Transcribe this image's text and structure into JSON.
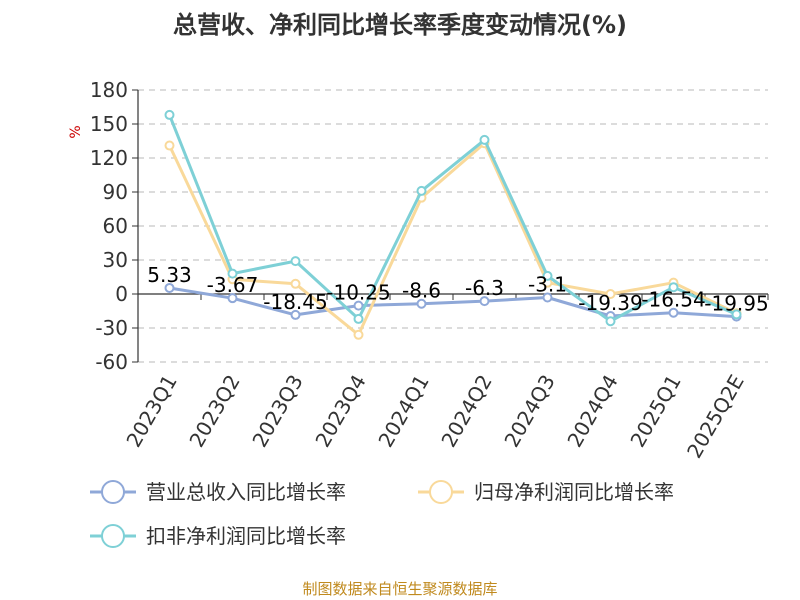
{
  "chart_data": {
    "type": "line",
    "title": "总营收、净利同比增长率季度变动情况(%)",
    "ylabel": "%",
    "ylim": [
      -60,
      180
    ],
    "yticks": [
      180,
      150,
      120,
      90,
      60,
      30,
      0,
      -30,
      -60
    ],
    "grid": true,
    "legend_position": "bottom",
    "categories": [
      "2023Q1",
      "2023Q2",
      "2023Q3",
      "2023Q4",
      "2024Q1",
      "2024Q2",
      "2024Q3",
      "2024Q4",
      "2025Q1",
      "2025Q2E"
    ],
    "series": [
      {
        "name": "营业总收入同比增长率",
        "color": "#8fa8d8",
        "values": [
          5.33,
          -3.67,
          -18.45,
          -10.25,
          -8.6,
          -6.3,
          -3.1,
          -19.39,
          -16.54,
          -19.95
        ],
        "data_labels": [
          "5.33",
          "-3.67",
          "-18.45",
          "-10.25",
          "-8.6",
          "-6.3",
          "-3.1",
          "-19.39",
          "-16.54",
          "-19.95"
        ]
      },
      {
        "name": "归母净利润同比增长率",
        "color": "#f9d99a",
        "values": [
          131,
          13,
          9,
          -36,
          85,
          133,
          10,
          0,
          10,
          -17
        ]
      },
      {
        "name": "扣非净利润同比增长率",
        "color": "#7ed0d6",
        "values": [
          158,
          18,
          29,
          -22,
          91,
          136,
          16,
          -24,
          6,
          -18
        ]
      }
    ],
    "source": "制图数据来自恒生聚源数据库"
  }
}
